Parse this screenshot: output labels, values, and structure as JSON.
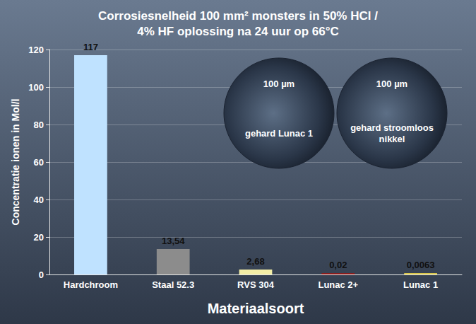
{
  "chart_data": {
    "type": "bar",
    "title": "Corrosiesnelheid 100 mm² monsters in 50% HCl / 4% HF oplossing na 24 uur op 66°C",
    "x_label": "Materiaalsoort",
    "y_label": "Concentratie ionen in Mol/l",
    "categories": [
      "Hardchroom",
      "Staal 52.3",
      "RVS 304",
      "Lunac 2+",
      "Lunac 1"
    ],
    "values": [
      117,
      13.54,
      2.68,
      0.02,
      0.0063
    ],
    "value_labels": [
      "117",
      "13,54",
      "2,68",
      "0,02",
      "0,0063"
    ],
    "colors": [
      "#bfe2ff",
      "#8c8c8c",
      "#f3eea6",
      "#8b1c1c",
      "#d9c64a"
    ],
    "ylim": [
      0,
      120
    ],
    "yticks": [
      0,
      20,
      40,
      60,
      80,
      100,
      120
    ],
    "grid": true,
    "data_labels": true,
    "annotations": [
      {
        "scale": "100 µm",
        "caption": "gehard Lunac 1"
      },
      {
        "scale": "100 µm",
        "caption": "gehard stroomloos nikkel"
      }
    ]
  }
}
